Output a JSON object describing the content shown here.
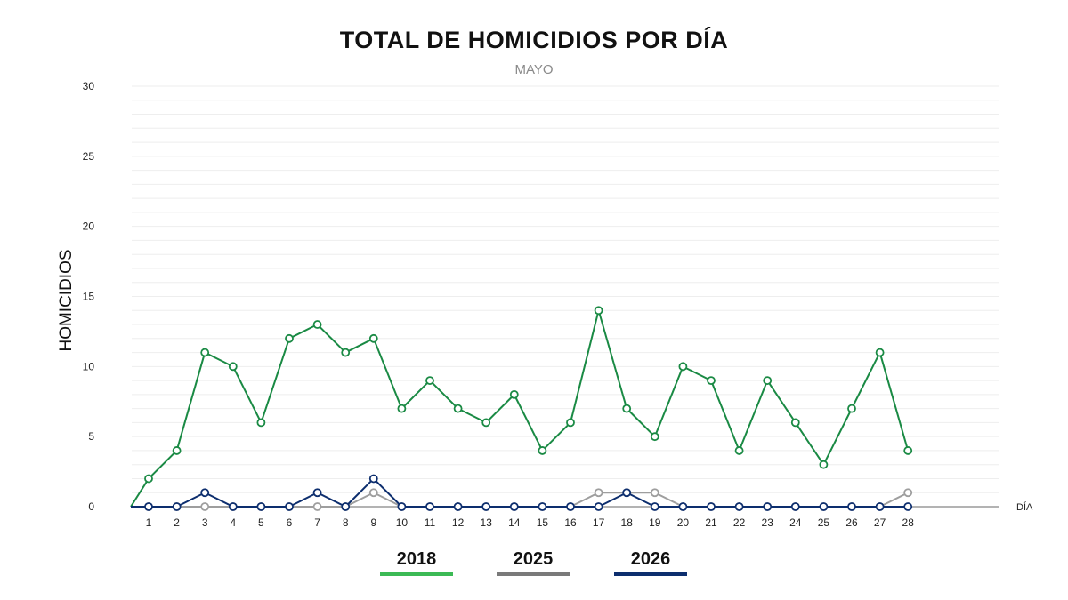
{
  "title": "TOTAL DE HOMICIDIOS POR DÍA",
  "subtitle": "MAYO",
  "chart_data": {
    "type": "line",
    "title": "TOTAL DE HOMICIDIOS POR DÍA",
    "subtitle": "MAYO",
    "xlabel": "DÍA",
    "ylabel": "HOMICIDIOS",
    "x": [
      1,
      2,
      3,
      4,
      5,
      6,
      7,
      8,
      9,
      10,
      11,
      12,
      13,
      14,
      15,
      16,
      17,
      18,
      19,
      20,
      21,
      22,
      23,
      24,
      25,
      26,
      27,
      28
    ],
    "ylim": [
      0,
      30
    ],
    "yticks": [
      0,
      5,
      10,
      15,
      20,
      25,
      30
    ],
    "grid": true,
    "legend_position": "bottom",
    "series": [
      {
        "name": "2018",
        "color": "#1a8a44",
        "legend_color": "#3cba55",
        "values": [
          2,
          4,
          11,
          10,
          6,
          12,
          13,
          11,
          12,
          7,
          9,
          7,
          6,
          8,
          4,
          6,
          14,
          7,
          5,
          10,
          9,
          4,
          9,
          6,
          3,
          7,
          11,
          4
        ]
      },
      {
        "name": "2025",
        "color": "#9e9e9e",
        "legend_color": "#7a7a7a",
        "values": [
          0,
          0,
          0,
          0,
          0,
          0,
          0,
          0,
          1,
          0,
          0,
          0,
          0,
          0,
          0,
          0,
          1,
          1,
          1,
          0,
          0,
          0,
          0,
          0,
          0,
          0,
          0,
          1
        ]
      },
      {
        "name": "2026",
        "color": "#0d2e6e",
        "legend_color": "#0d2e6e",
        "values": [
          0,
          0,
          1,
          0,
          0,
          0,
          1,
          0,
          2,
          0,
          0,
          0,
          0,
          0,
          0,
          0,
          0,
          1,
          0,
          0,
          0,
          0,
          0,
          0,
          0,
          0,
          0,
          0
        ]
      }
    ]
  }
}
